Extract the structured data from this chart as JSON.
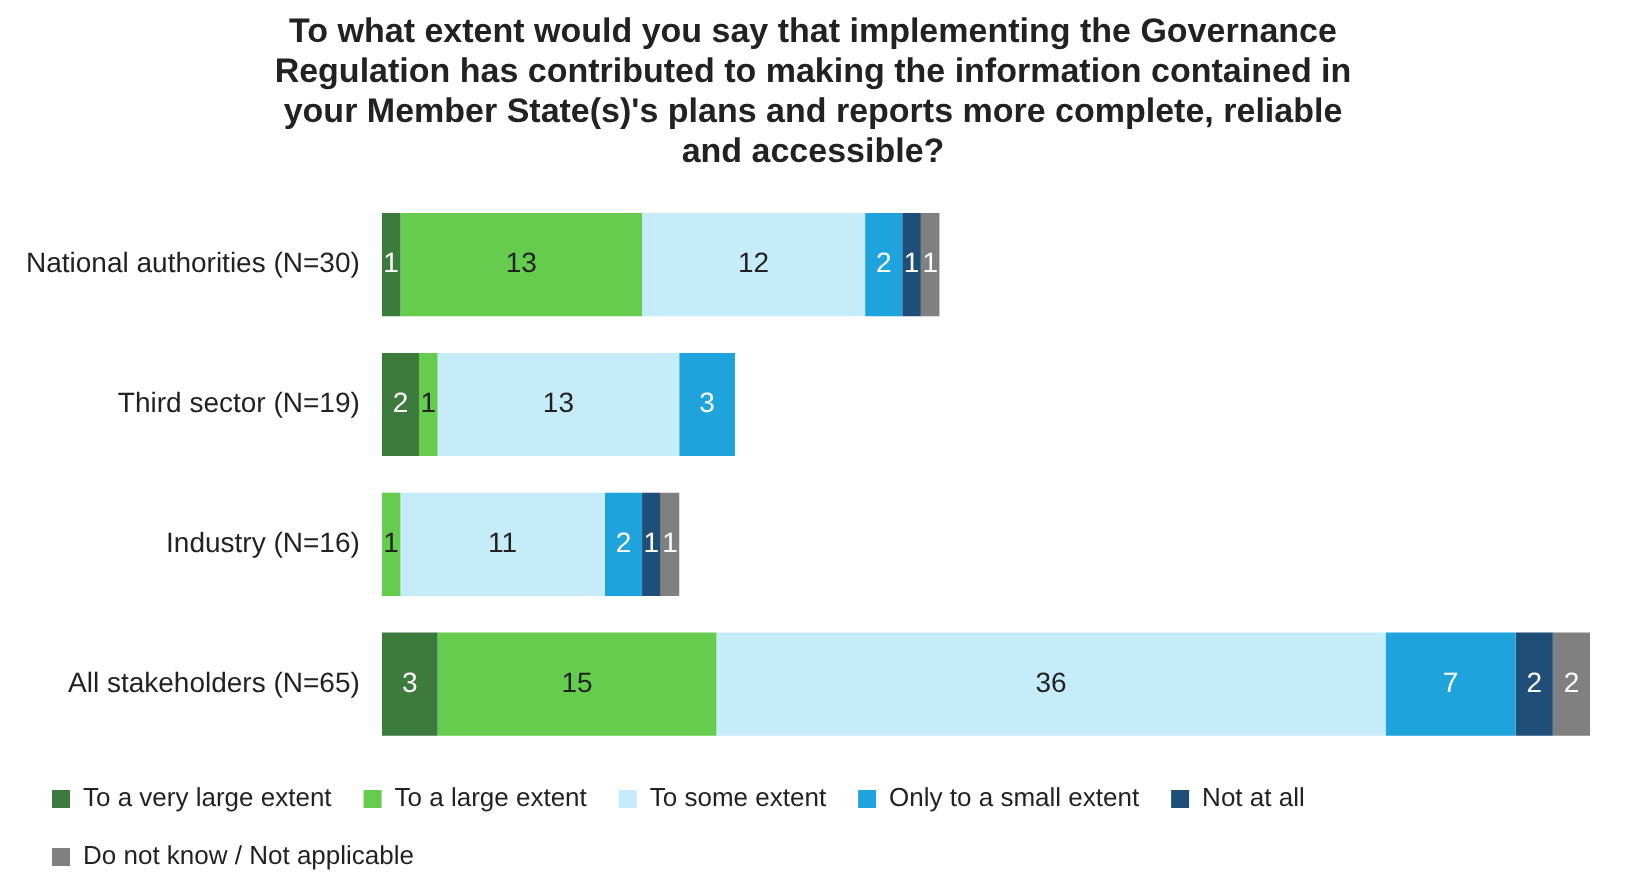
{
  "chart_data": {
    "type": "bar",
    "orientation": "horizontal",
    "stacked": true,
    "data_labels": true,
    "legend": "bottom",
    "title": "To what extent would you say that implementing the Governance Regulation has contributed to making the information contained in your Member State(s)'s plans and reports more complete, reliable and accessible?",
    "categories": [
      "National authorities (N=30)",
      "Third sector (N=19)",
      "Industry (N=16)",
      "All stakeholders (N=65)"
    ],
    "series": [
      {
        "name": "To a very large extent",
        "color": "#3d7a3d",
        "values": [
          1,
          2,
          null,
          3
        ]
      },
      {
        "name": "To a large extent",
        "color": "#66cc4d",
        "values": [
          13,
          1,
          1,
          15
        ]
      },
      {
        "name": "To some extent",
        "color": "#c6ecfa",
        "values": [
          12,
          13,
          11,
          36
        ]
      },
      {
        "name": "Only to a small extent",
        "color": "#1fa3dc",
        "values": [
          2,
          3,
          2,
          7
        ]
      },
      {
        "name": "Not at all",
        "color": "#1f4e79",
        "values": [
          1,
          null,
          1,
          2
        ]
      },
      {
        "name": "Do not know / Not applicable",
        "color": "#808080",
        "values": [
          1,
          null,
          1,
          2
        ]
      }
    ]
  }
}
